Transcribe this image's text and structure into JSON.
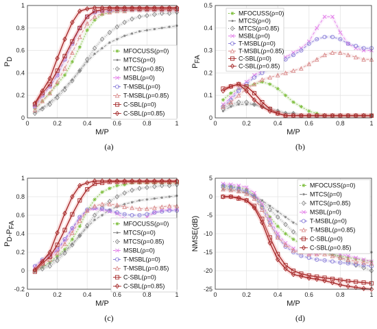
{
  "series_style": [
    {
      "name": "MFOCUSS(ρ=0)",
      "color": "#7fbf3f",
      "dash": "2,2",
      "marker": "star"
    },
    {
      "name": "MTCS(ρ=0)",
      "color": "#888888",
      "dash": "4,3",
      "marker": "dot"
    },
    {
      "name": "MTCS(ρ=0.85)",
      "color": "#888888",
      "dash": "1,2",
      "marker": "diamond"
    },
    {
      "name": "MSBL(ρ=0)",
      "color": "#e27be8",
      "dash": "4,3",
      "marker": "x"
    },
    {
      "name": "T-MSBL(ρ=0)",
      "color": "#8a7fd9",
      "dash": "4,3",
      "marker": "circle"
    },
    {
      "name": "T-MSBL(ρ=0.85)",
      "color": "#d98a8a",
      "dash": "4,3",
      "marker": "triangle"
    },
    {
      "name": "C-SBL(ρ=0)",
      "color": "#a52a2a",
      "dash": "",
      "marker": "square"
    },
    {
      "name": "C-SBL(ρ=0.85)",
      "color": "#a52a2a",
      "dash": "",
      "marker": "diamond"
    }
  ],
  "chart_data": [
    {
      "id": "a",
      "type": "line",
      "caption": "(a)",
      "xlabel": "M/P",
      "ylabel": "P_D",
      "xlim": [
        0,
        1
      ],
      "ylim": [
        0,
        1
      ],
      "xticks": [
        0,
        0.2,
        0.4,
        0.6,
        0.8,
        1
      ],
      "yticks": [
        0,
        0.2,
        0.4,
        0.6,
        0.8,
        1
      ],
      "grid": true,
      "legend": "bottom-right",
      "x": [
        0.05,
        0.1,
        0.15,
        0.2,
        0.25,
        0.3,
        0.35,
        0.4,
        0.45,
        0.5,
        0.55,
        0.6,
        0.65,
        0.7,
        0.75,
        0.8,
        0.85,
        0.9,
        0.95,
        1.0
      ],
      "series": [
        {
          "name": "MFOCUSS(ρ=0)",
          "values": [
            0.08,
            0.15,
            0.22,
            0.3,
            0.38,
            0.5,
            0.63,
            0.78,
            0.87,
            0.92,
            0.94,
            0.95,
            0.95,
            0.96,
            0.96,
            0.96,
            0.96,
            0.96,
            0.96,
            0.96
          ]
        },
        {
          "name": "MTCS(ρ=0)",
          "values": [
            0.05,
            0.09,
            0.14,
            0.2,
            0.27,
            0.34,
            0.42,
            0.5,
            0.57,
            0.62,
            0.67,
            0.7,
            0.73,
            0.75,
            0.77,
            0.78,
            0.79,
            0.8,
            0.81,
            0.82
          ]
        },
        {
          "name": "MTCS(ρ=0.85)",
          "values": [
            0.04,
            0.08,
            0.12,
            0.18,
            0.25,
            0.33,
            0.42,
            0.52,
            0.62,
            0.7,
            0.76,
            0.81,
            0.85,
            0.88,
            0.9,
            0.91,
            0.92,
            0.93,
            0.93,
            0.94
          ]
        },
        {
          "name": "MSBL(ρ=0)",
          "values": [
            0.1,
            0.2,
            0.28,
            0.38,
            0.52,
            0.66,
            0.8,
            0.9,
            0.94,
            0.95,
            0.95,
            0.96,
            0.96,
            0.96,
            0.96,
            0.96,
            0.96,
            0.96,
            0.96,
            0.96
          ]
        },
        {
          "name": "T-MSBL(ρ=0)",
          "values": [
            0.1,
            0.2,
            0.28,
            0.38,
            0.52,
            0.66,
            0.8,
            0.9,
            0.94,
            0.95,
            0.95,
            0.96,
            0.96,
            0.96,
            0.96,
            0.96,
            0.96,
            0.96,
            0.96,
            0.96
          ]
        },
        {
          "name": "T-MSBL(ρ=0.85)",
          "values": [
            0.07,
            0.15,
            0.22,
            0.32,
            0.44,
            0.58,
            0.72,
            0.84,
            0.9,
            0.93,
            0.94,
            0.95,
            0.95,
            0.96,
            0.96,
            0.96,
            0.96,
            0.96,
            0.96,
            0.96
          ]
        },
        {
          "name": "C-SBL(ρ=0)",
          "values": [
            0.12,
            0.22,
            0.3,
            0.42,
            0.55,
            0.68,
            0.8,
            0.9,
            0.95,
            0.96,
            0.97,
            0.97,
            0.97,
            0.97,
            0.97,
            0.97,
            0.97,
            0.97,
            0.97,
            0.97
          ]
        },
        {
          "name": "C-SBL(ρ=0.85)",
          "values": [
            0.13,
            0.24,
            0.35,
            0.53,
            0.7,
            0.85,
            0.95,
            0.97,
            0.98,
            0.98,
            0.98,
            0.98,
            0.98,
            0.98,
            0.98,
            0.98,
            0.98,
            0.98,
            0.98,
            0.98
          ]
        }
      ]
    },
    {
      "id": "b",
      "type": "line",
      "caption": "(b)",
      "xlabel": "M/P",
      "ylabel": "P_FA",
      "xlim": [
        0,
        1
      ],
      "ylim": [
        0,
        0.5
      ],
      "xticks": [
        0,
        0.2,
        0.4,
        0.6,
        0.8,
        1
      ],
      "yticks": [
        0,
        0.1,
        0.2,
        0.3,
        0.4,
        0.5
      ],
      "grid": true,
      "legend": "top-left",
      "x": [
        0.05,
        0.1,
        0.15,
        0.2,
        0.25,
        0.3,
        0.35,
        0.4,
        0.45,
        0.5,
        0.55,
        0.6,
        0.65,
        0.7,
        0.75,
        0.8,
        0.85,
        0.9,
        0.95,
        1.0
      ],
      "series": [
        {
          "name": "MFOCUSS(ρ=0)",
          "values": [
            0.08,
            0.11,
            0.13,
            0.14,
            0.15,
            0.16,
            0.15,
            0.13,
            0.1,
            0.07,
            0.05,
            0.03,
            0.02,
            0.01,
            0.01,
            0.01,
            0.01,
            0.01,
            0.01,
            0.01
          ]
        },
        {
          "name": "MTCS(ρ=0)",
          "values": [
            0.03,
            0.05,
            0.06,
            0.06,
            0.06,
            0.05,
            0.04,
            0.03,
            0.02,
            0.02,
            0.01,
            0.01,
            0.01,
            0.01,
            0.01,
            0.01,
            0.01,
            0.01,
            0.01,
            0.01
          ]
        },
        {
          "name": "MTCS(ρ=0.85)",
          "values": [
            0.04,
            0.06,
            0.07,
            0.07,
            0.06,
            0.05,
            0.04,
            0.03,
            0.02,
            0.02,
            0.01,
            0.01,
            0.01,
            0.01,
            0.01,
            0.01,
            0.01,
            0.01,
            0.01,
            0.01
          ]
        },
        {
          "name": "MSBL(ρ=0)",
          "values": [
            0.06,
            0.09,
            0.13,
            0.16,
            0.19,
            0.21,
            0.23,
            0.25,
            0.27,
            0.29,
            0.31,
            0.34,
            0.4,
            0.45,
            0.45,
            0.38,
            0.33,
            0.31,
            0.3,
            0.3
          ]
        },
        {
          "name": "T-MSBL(ρ=0)",
          "values": [
            0.05,
            0.08,
            0.12,
            0.15,
            0.18,
            0.2,
            0.22,
            0.24,
            0.26,
            0.28,
            0.3,
            0.33,
            0.35,
            0.36,
            0.36,
            0.35,
            0.33,
            0.32,
            0.31,
            0.31
          ]
        },
        {
          "name": "T-MSBL(ρ=0.85)",
          "values": [
            0.05,
            0.07,
            0.1,
            0.13,
            0.15,
            0.17,
            0.18,
            0.19,
            0.2,
            0.21,
            0.22,
            0.24,
            0.26,
            0.28,
            0.29,
            0.29,
            0.28,
            0.27,
            0.26,
            0.26
          ]
        },
        {
          "name": "C-SBL(ρ=0)",
          "values": [
            0.13,
            0.14,
            0.15,
            0.14,
            0.11,
            0.07,
            0.04,
            0.02,
            0.01,
            0.01,
            0.01,
            0.01,
            0.01,
            0.01,
            0.01,
            0.01,
            0.01,
            0.01,
            0.01,
            0.01
          ]
        },
        {
          "name": "C-SBL(ρ=0.85)",
          "values": [
            0.12,
            0.14,
            0.15,
            0.12,
            0.08,
            0.05,
            0.03,
            0.02,
            0.01,
            0.01,
            0.01,
            0.01,
            0.01,
            0.01,
            0.01,
            0.01,
            0.01,
            0.01,
            0.01,
            0.01
          ]
        }
      ]
    },
    {
      "id": "c",
      "type": "line",
      "caption": "(c)",
      "xlabel": "M/P",
      "ylabel": "P_D-P_FA",
      "xlim": [
        0,
        1
      ],
      "ylim": [
        -0.2,
        1
      ],
      "xticks": [
        0,
        0.2,
        0.4,
        0.6,
        0.8,
        1
      ],
      "yticks": [
        -0.2,
        0,
        0.2,
        0.4,
        0.6,
        0.8,
        1
      ],
      "grid": true,
      "legend": "bottom-right",
      "x": [
        0.05,
        0.1,
        0.15,
        0.2,
        0.25,
        0.3,
        0.35,
        0.4,
        0.45,
        0.5,
        0.55,
        0.6,
        0.65,
        0.7,
        0.75,
        0.8,
        0.85,
        0.9,
        0.95,
        1.0
      ],
      "series": [
        {
          "name": "MFOCUSS(ρ=0)",
          "values": [
            0.0,
            0.04,
            0.09,
            0.16,
            0.23,
            0.34,
            0.48,
            0.65,
            0.77,
            0.85,
            0.89,
            0.92,
            0.93,
            0.95,
            0.95,
            0.95,
            0.95,
            0.95,
            0.95,
            0.95
          ]
        },
        {
          "name": "MTCS(ρ=0)",
          "values": [
            0.02,
            0.04,
            0.08,
            0.14,
            0.21,
            0.29,
            0.38,
            0.47,
            0.55,
            0.6,
            0.66,
            0.69,
            0.72,
            0.74,
            0.76,
            0.77,
            0.78,
            0.79,
            0.8,
            0.81
          ]
        },
        {
          "name": "MTCS(ρ=0.85)",
          "values": [
            0.0,
            0.02,
            0.05,
            0.11,
            0.19,
            0.28,
            0.38,
            0.49,
            0.6,
            0.68,
            0.75,
            0.8,
            0.84,
            0.87,
            0.89,
            0.9,
            0.91,
            0.92,
            0.92,
            0.93
          ]
        },
        {
          "name": "MSBL(ρ=0)",
          "values": [
            0.04,
            0.11,
            0.15,
            0.22,
            0.33,
            0.45,
            0.57,
            0.65,
            0.67,
            0.66,
            0.64,
            0.62,
            0.56,
            0.51,
            0.51,
            0.58,
            0.63,
            0.65,
            0.66,
            0.66
          ]
        },
        {
          "name": "T-MSBL(ρ=0)",
          "values": [
            0.05,
            0.12,
            0.16,
            0.23,
            0.34,
            0.46,
            0.58,
            0.66,
            0.68,
            0.67,
            0.65,
            0.63,
            0.61,
            0.6,
            0.6,
            0.61,
            0.63,
            0.64,
            0.65,
            0.65
          ]
        },
        {
          "name": "T-MSBL(ρ=0.85)",
          "values": [
            0.02,
            0.08,
            0.12,
            0.19,
            0.29,
            0.41,
            0.54,
            0.65,
            0.7,
            0.72,
            0.72,
            0.71,
            0.69,
            0.68,
            0.67,
            0.67,
            0.68,
            0.69,
            0.7,
            0.7
          ]
        },
        {
          "name": "C-SBL(ρ=0)",
          "values": [
            -0.01,
            0.08,
            0.15,
            0.28,
            0.44,
            0.61,
            0.76,
            0.88,
            0.94,
            0.95,
            0.96,
            0.96,
            0.96,
            0.96,
            0.96,
            0.96,
            0.96,
            0.96,
            0.96,
            0.96
          ]
        },
        {
          "name": "C-SBL(ρ=0.85)",
          "values": [
            0.01,
            0.1,
            0.2,
            0.41,
            0.62,
            0.8,
            0.92,
            0.95,
            0.97,
            0.97,
            0.97,
            0.97,
            0.97,
            0.97,
            0.97,
            0.97,
            0.97,
            0.97,
            0.97,
            0.97
          ]
        }
      ]
    },
    {
      "id": "d",
      "type": "line",
      "caption": "(d)",
      "xlabel": "M/P",
      "ylabel": "NMSE(dB)",
      "xlim": [
        0,
        1
      ],
      "ylim": [
        -25,
        5
      ],
      "xticks": [
        0,
        0.2,
        0.4,
        0.6,
        0.8,
        1
      ],
      "yticks": [
        -25,
        -20,
        -15,
        -10,
        -5,
        0,
        5
      ],
      "grid": true,
      "legend": "top-right",
      "x": [
        0.05,
        0.1,
        0.15,
        0.2,
        0.25,
        0.3,
        0.35,
        0.4,
        0.45,
        0.5,
        0.55,
        0.6,
        0.65,
        0.7,
        0.75,
        0.8,
        0.85,
        0.9,
        0.95,
        1.0
      ],
      "series": [
        {
          "name": "MFOCUSS(ρ=0)",
          "values": [
            3.0,
            2.8,
            2.5,
            2.0,
            0.5,
            -2.5,
            -5.5,
            -8.0,
            -10.0,
            -11.5,
            -12.8,
            -13.8,
            -14.5,
            -15.2,
            -15.6,
            -16.0,
            -16.4,
            -16.8,
            -17.2,
            -17.5
          ]
        },
        {
          "name": "MTCS(ρ=0)",
          "values": [
            2.0,
            1.8,
            1.5,
            1.0,
            0.0,
            -1.0,
            -2.5,
            -4.0,
            -5.5,
            -7.0,
            -8.0,
            -9.0,
            -10.0,
            -11.0,
            -11.8,
            -12.5,
            -13.2,
            -14.0,
            -14.5,
            -15.0
          ]
        },
        {
          "name": "MTCS(ρ=0.85)",
          "values": [
            2.5,
            2.2,
            1.8,
            1.2,
            0.0,
            -1.5,
            -3.5,
            -5.5,
            -7.5,
            -9.5,
            -11.0,
            -12.5,
            -13.5,
            -14.5,
            -15.5,
            -16.5,
            -17.5,
            -18.5,
            -19.2,
            -20.0
          ]
        },
        {
          "name": "MSBL(ρ=0)",
          "values": [
            3.5,
            3.3,
            3.0,
            2.5,
            1.0,
            -2.0,
            -6.0,
            -10.0,
            -12.5,
            -14.0,
            -15.0,
            -15.5,
            -15.5,
            -15.0,
            -15.0,
            -15.5,
            -16.0,
            -16.5,
            -17.0,
            -17.5
          ]
        },
        {
          "name": "T-MSBL(ρ=0)",
          "values": [
            3.0,
            2.7,
            2.2,
            1.5,
            0.0,
            -3.0,
            -7.0,
            -11.0,
            -13.5,
            -15.0,
            -16.0,
            -16.5,
            -17.0,
            -17.2,
            -17.5,
            -17.8,
            -18.0,
            -18.3,
            -18.5,
            -18.8
          ]
        },
        {
          "name": "T-MSBL(ρ=0.85)",
          "values": [
            2.0,
            1.8,
            1.5,
            0.8,
            -0.5,
            -3.5,
            -7.5,
            -11.0,
            -13.0,
            -14.5,
            -15.0,
            -15.5,
            -15.5,
            -15.5,
            -16.0,
            -16.5,
            -17.0,
            -17.5,
            -17.8,
            -18.0
          ]
        },
        {
          "name": "C-SBL(ρ=0)",
          "values": [
            0.0,
            0.0,
            -0.5,
            -1.0,
            -2.5,
            -6.0,
            -11.0,
            -15.5,
            -18.5,
            -20.0,
            -20.8,
            -21.3,
            -21.6,
            -21.9,
            -22.2,
            -22.5,
            -22.8,
            -23.0,
            -23.2,
            -23.4
          ]
        },
        {
          "name": "C-SBL(ρ=0.85)",
          "values": [
            0.0,
            0.0,
            -0.3,
            -1.0,
            -3.0,
            -7.0,
            -12.5,
            -17.0,
            -19.5,
            -21.0,
            -21.5,
            -22.0,
            -22.3,
            -22.7,
            -23.2,
            -23.8,
            -24.2,
            -24.5,
            -24.8,
            -25.0
          ]
        }
      ]
    }
  ]
}
